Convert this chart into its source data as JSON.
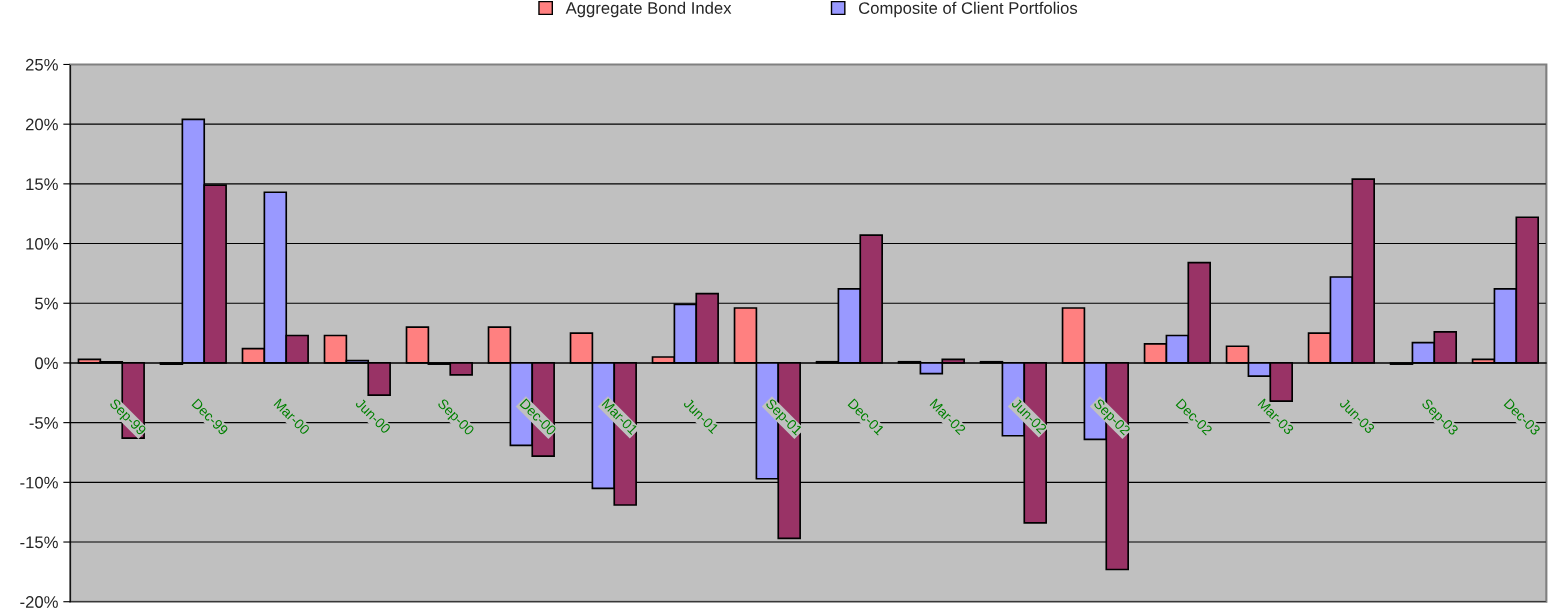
{
  "chart_data": {
    "type": "bar",
    "categories": [
      "Sep-99",
      "Dec-99",
      "Mar-00",
      "Jun-00",
      "Sep-00",
      "Dec-00",
      "Mar-01",
      "Jun-01",
      "Sep-01",
      "Dec-01",
      "Mar-02",
      "Jun-02",
      "Sep-02",
      "Dec-02",
      "Mar-03",
      "Jun-03",
      "Sep-03",
      "Dec-03"
    ],
    "series": [
      {
        "name": "Aggregate Bond Index",
        "color": "#ff8080",
        "values": [
          0.3,
          -0.1,
          1.2,
          2.3,
          3.0,
          3.0,
          2.5,
          0.5,
          4.6,
          0.1,
          0.1,
          0.1,
          4.6,
          1.6,
          1.4,
          2.5,
          -0.1,
          0.3
        ]
      },
      {
        "name": "Composite of Client Portfolios",
        "color": "#9999ff",
        "values": [
          0.1,
          20.4,
          14.3,
          0.2,
          -0.1,
          -6.9,
          -10.5,
          4.9,
          -9.7,
          6.2,
          -0.9,
          -6.1,
          -6.4,
          2.3,
          -1.1,
          7.2,
          1.7,
          6.2
        ]
      },
      {
        "color": "#993366",
        "values": [
          -6.3,
          14.9,
          2.3,
          -2.7,
          -1.0,
          -7.8,
          -11.9,
          5.8,
          -14.7,
          10.7,
          0.3,
          -13.4,
          -17.3,
          8.4,
          -3.2,
          15.4,
          2.6,
          12.2
        ]
      }
    ],
    "ylim": [
      -20,
      25
    ],
    "yticks": [
      {
        "value": -20,
        "label": "-20%"
      },
      {
        "value": -15,
        "label": "-15%"
      },
      {
        "value": -10,
        "label": "-10%"
      },
      {
        "value": -5,
        "label": "-5%"
      },
      {
        "value": 0,
        "label": "0%"
      },
      {
        "value": 5,
        "label": "5%"
      },
      {
        "value": 10,
        "label": "10%"
      },
      {
        "value": 15,
        "label": "15%"
      },
      {
        "value": 20,
        "label": "20%"
      },
      {
        "value": 25,
        "label": "25%"
      }
    ],
    "grid": "y",
    "legend": "top"
  }
}
